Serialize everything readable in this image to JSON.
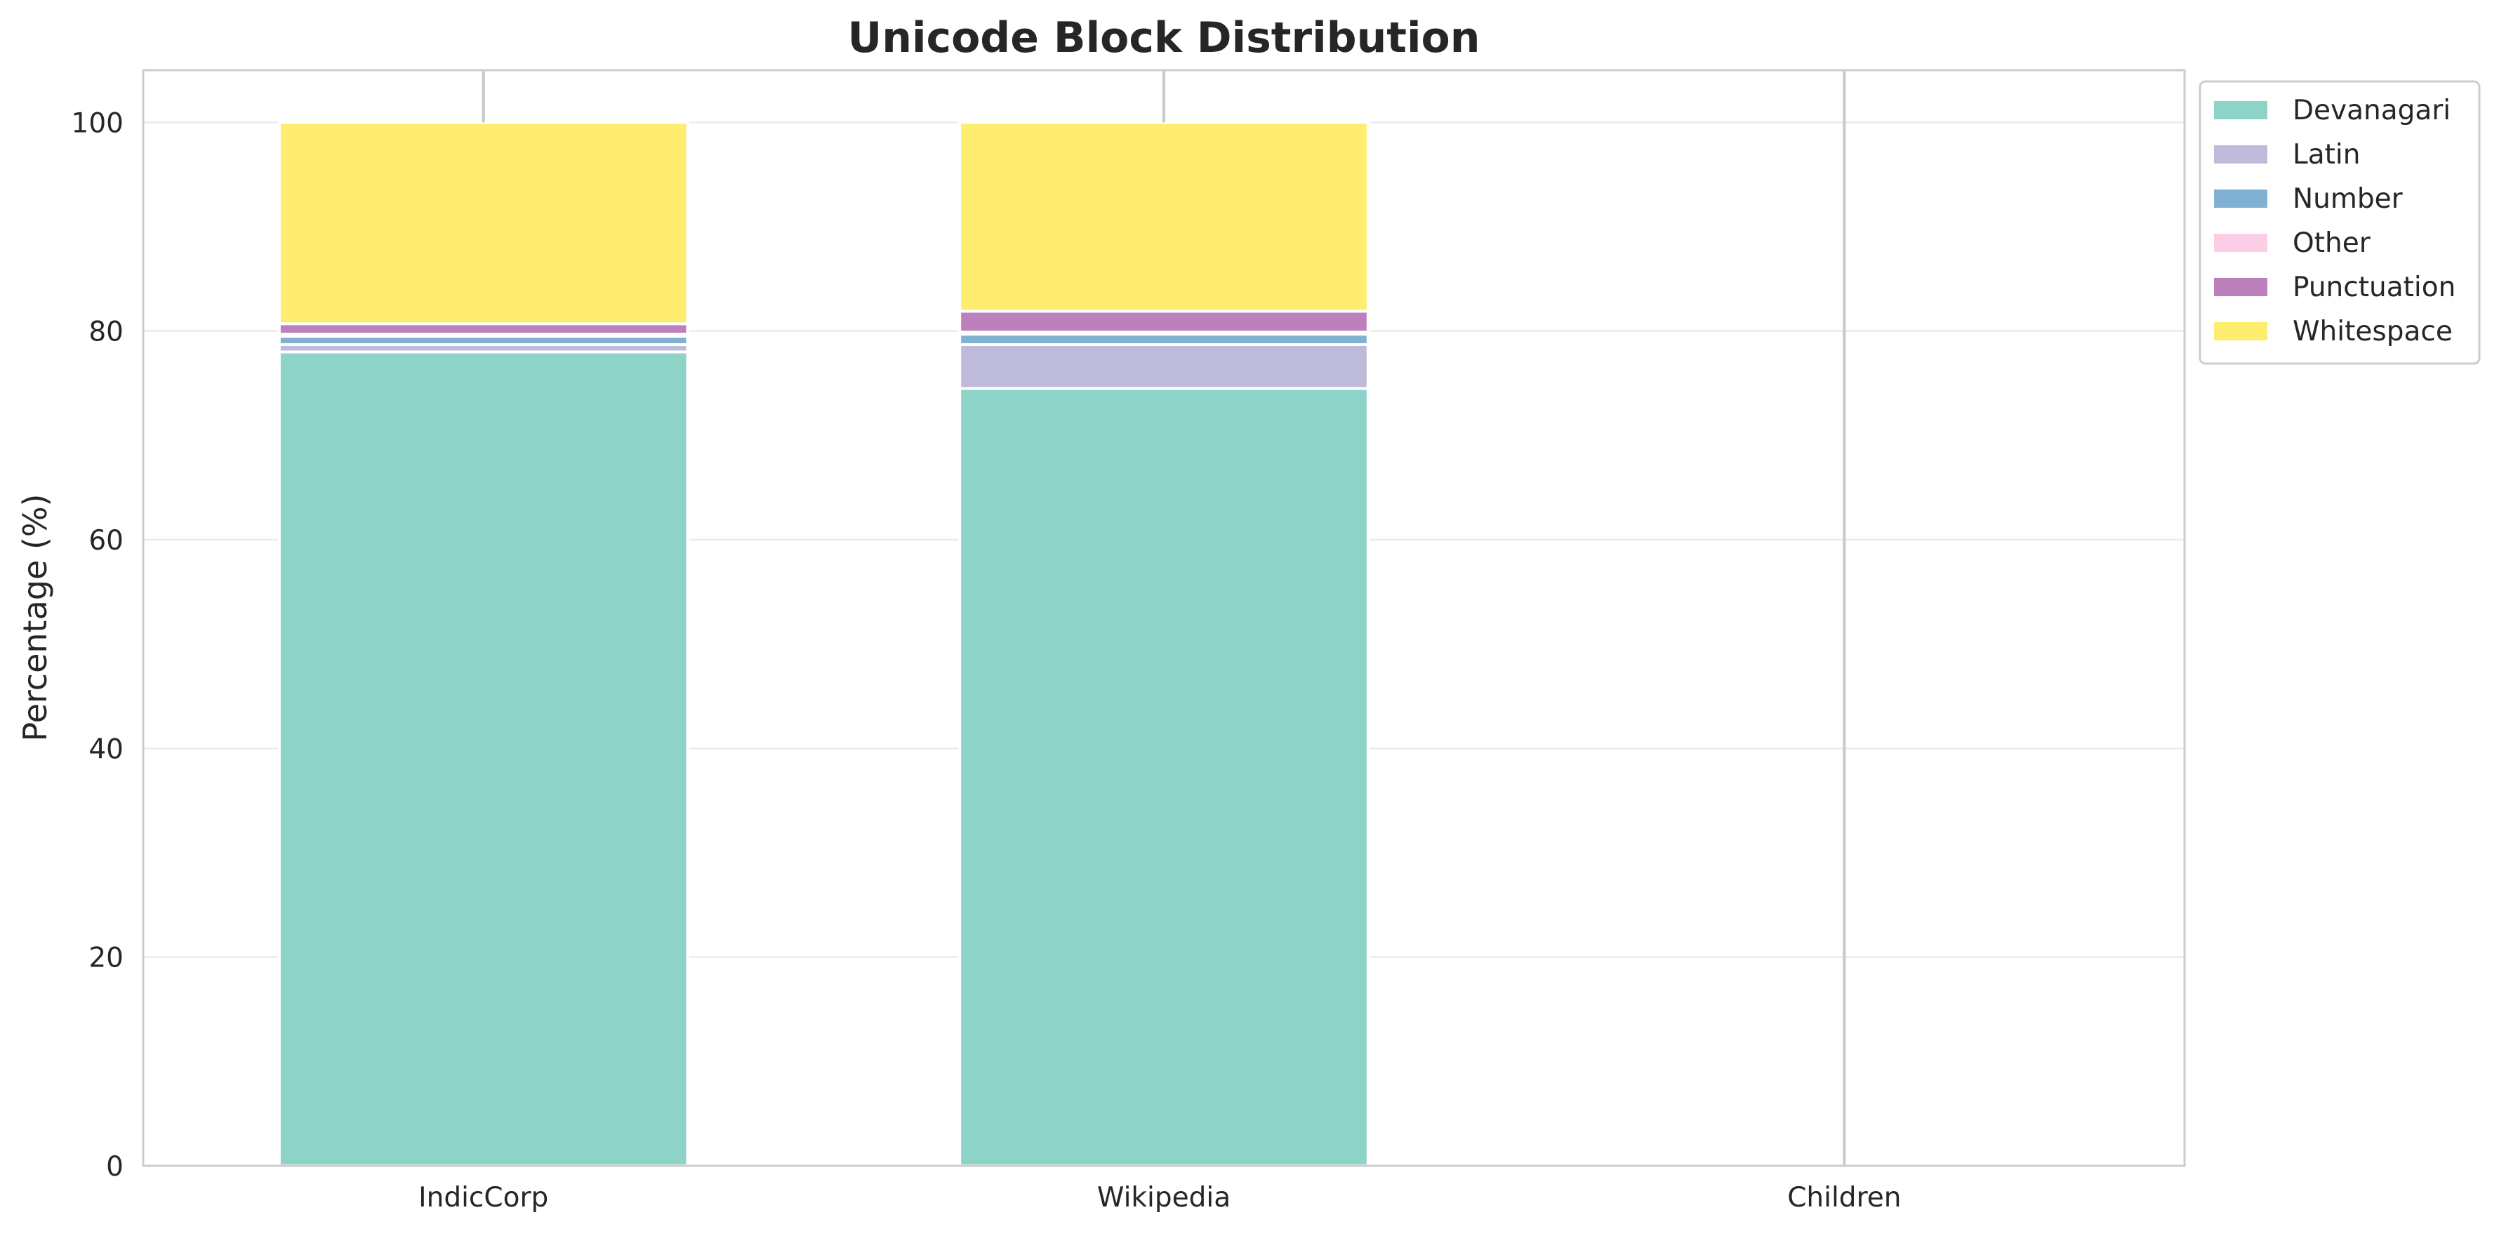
{
  "chart_data": {
    "type": "bar",
    "stacked": true,
    "title": "Unicode Block Distribution",
    "xlabel": "",
    "ylabel": "Percentage (%)",
    "ylim": [
      0,
      105
    ],
    "yticks": [
      "0",
      "20",
      "40",
      "60",
      "80",
      "100"
    ],
    "grid": "horizontal",
    "legend_position": "outside-top-right",
    "categories": [
      "IndicCorp",
      "Wikipedia",
      "Children"
    ],
    "series": [
      {
        "name": "Devanagari",
        "color": "#8dd3c7",
        "values": [
          78.0,
          74.5,
          0
        ]
      },
      {
        "name": "Latin",
        "color": "#bebada",
        "values": [
          0.7,
          4.2,
          0
        ]
      },
      {
        "name": "Number",
        "color": "#80b1d3",
        "values": [
          0.8,
          1.0,
          0
        ]
      },
      {
        "name": "Other",
        "color": "#fccde5",
        "values": [
          0.2,
          0.2,
          0
        ]
      },
      {
        "name": "Punctuation",
        "color": "#bc80bd",
        "values": [
          1.0,
          2.0,
          0
        ]
      },
      {
        "name": "Whitespace",
        "color": "#ffed6f",
        "values": [
          19.3,
          18.1,
          0
        ]
      }
    ]
  }
}
